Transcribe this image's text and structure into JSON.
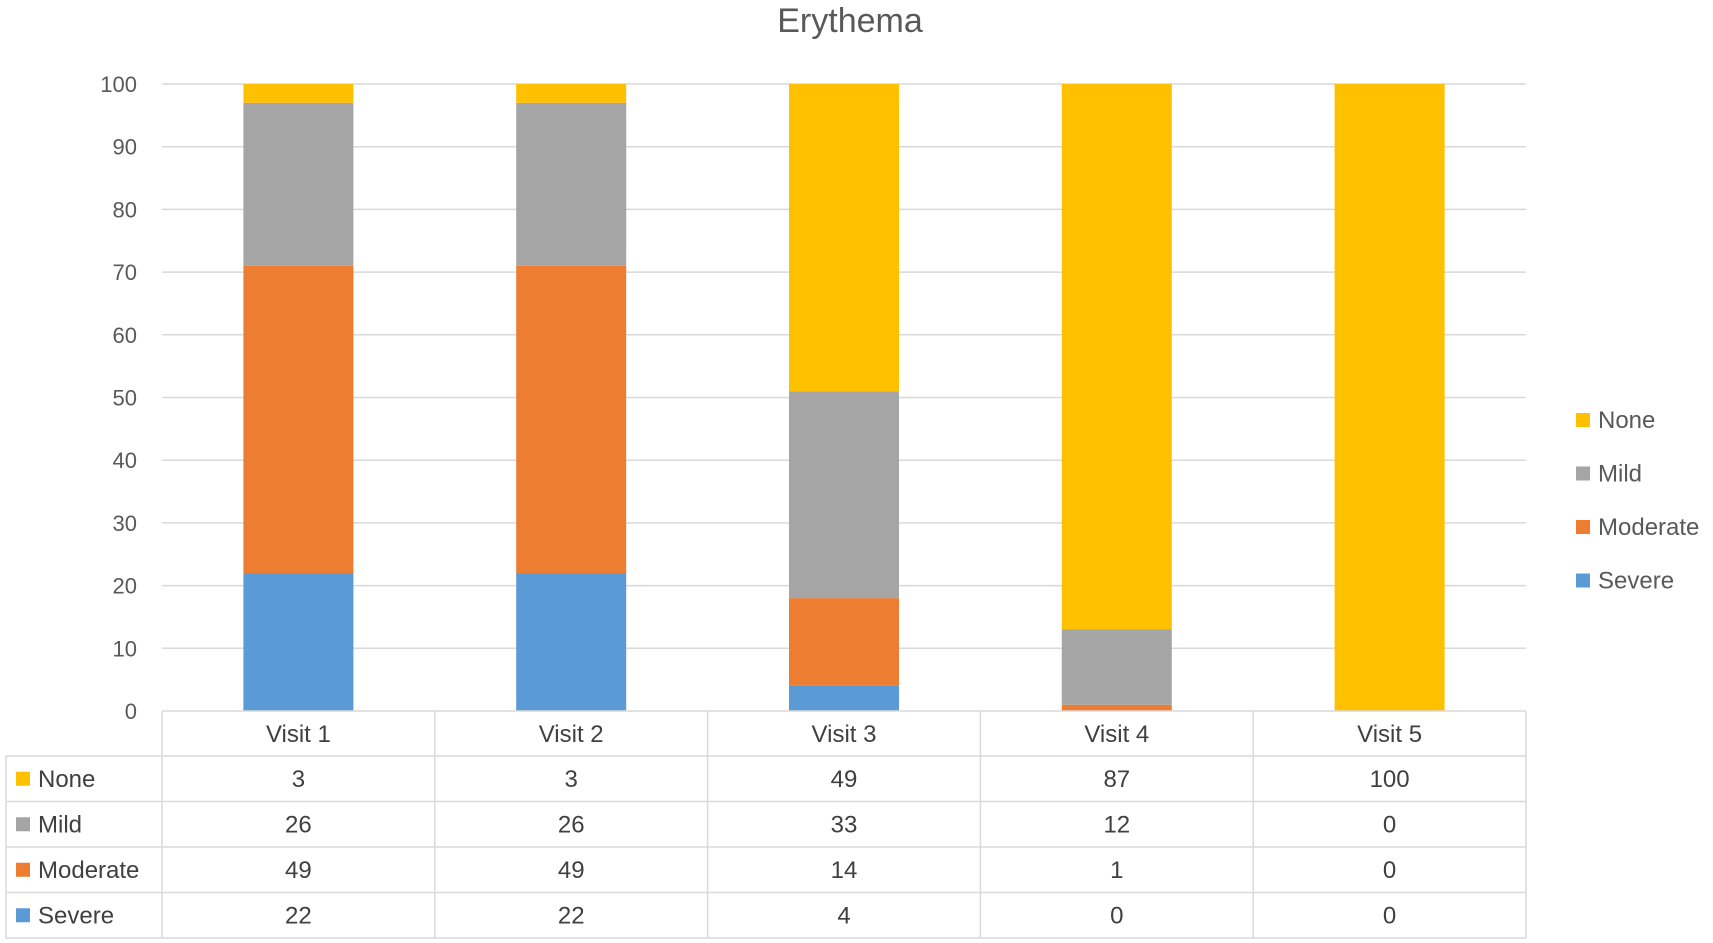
{
  "chart_data": {
    "type": "bar",
    "stacked": true,
    "title": "Erythema",
    "categories": [
      "Visit 1",
      "Visit 2",
      "Visit 3",
      "Visit 4",
      "Visit 5"
    ],
    "ylim": [
      0,
      100
    ],
    "yticks": [
      "0",
      "10",
      "20",
      "30",
      "40",
      "50",
      "60",
      "70",
      "80",
      "90",
      "100"
    ],
    "grid": true,
    "legend_position": "right",
    "series": [
      {
        "name": "Severe",
        "color": "#5B9BD5",
        "values": [
          22,
          22,
          4,
          0,
          0
        ]
      },
      {
        "name": "Moderate",
        "color": "#ED7D31",
        "values": [
          49,
          49,
          14,
          1,
          0
        ]
      },
      {
        "name": "Mild",
        "color": "#A5A5A5",
        "values": [
          26,
          26,
          33,
          12,
          0
        ]
      },
      {
        "name": "None",
        "color": "#FFC000",
        "values": [
          3,
          3,
          49,
          87,
          100
        ]
      }
    ],
    "data_table": {
      "row_order": [
        "None",
        "Mild",
        "Moderate",
        "Severe"
      ],
      "rows": [
        {
          "name": "None",
          "cells": [
            "3",
            "3",
            "49",
            "87",
            "100"
          ]
        },
        {
          "name": "Mild",
          "cells": [
            "26",
            "26",
            "33",
            "12",
            "0"
          ]
        },
        {
          "name": "Moderate",
          "cells": [
            "49",
            "49",
            "14",
            "1",
            "0"
          ]
        },
        {
          "name": "Severe",
          "cells": [
            "22",
            "22",
            "4",
            "0",
            "0"
          ]
        }
      ]
    },
    "legend_order": [
      "None",
      "Mild",
      "Moderate",
      "Severe"
    ]
  }
}
